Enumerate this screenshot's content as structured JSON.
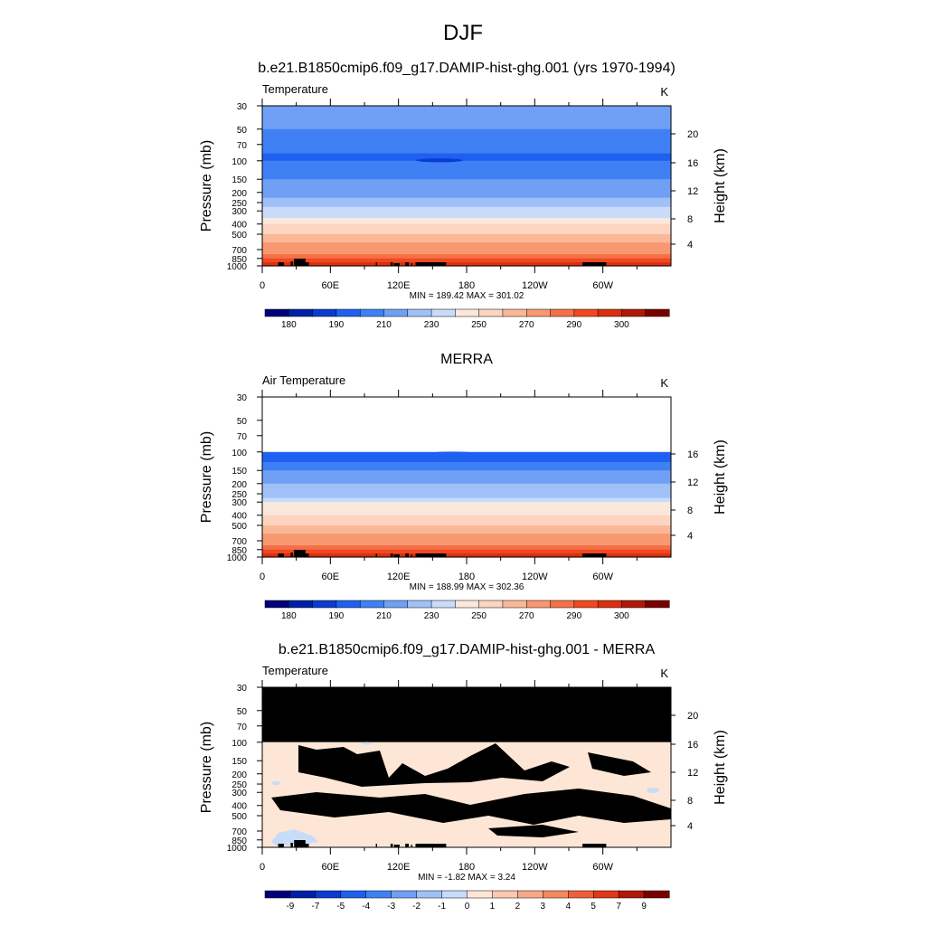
{
  "season": "DJF",
  "chart_data": [
    {
      "type": "heatmap",
      "title": "b.e21.B1850cmip6.f09_g17.DAMIP-hist-ghg.001 (yrs 1970-1994)",
      "left_label": "Temperature",
      "unit": "K",
      "ylabel": "Pressure (mb)",
      "ylabel_right": "Height (km)",
      "x_ticks": [
        "0",
        "60E",
        "120E",
        "180",
        "120W",
        "60W"
      ],
      "y_ticks": [
        "30",
        "50",
        "70",
        "100",
        "150",
        "200",
        "250",
        "300",
        "400",
        "500",
        "700",
        "850",
        "1000"
      ],
      "height_ticks": [
        "20",
        "16",
        "12",
        "8",
        "4"
      ],
      "stats": "MIN = 189.42  MAX = 301.02",
      "data_coverage": "30-1000 mb",
      "profile": [
        [
          30,
          215
        ],
        [
          50,
          209
        ],
        [
          70,
          202
        ],
        [
          100,
          198
        ],
        [
          150,
          208
        ],
        [
          200,
          217
        ],
        [
          250,
          226
        ],
        [
          300,
          235
        ],
        [
          400,
          250
        ],
        [
          500,
          260
        ],
        [
          700,
          276
        ],
        [
          850,
          284
        ],
        [
          1000,
          292
        ]
      ],
      "colorbar_labels": [
        "180",
        "190",
        "210",
        "230",
        "250",
        "270",
        "290",
        "300"
      ]
    },
    {
      "type": "heatmap",
      "title": "MERRA",
      "left_label": "Air Temperature",
      "unit": "K",
      "ylabel": "Pressure (mb)",
      "ylabel_right": "Height (km)",
      "x_ticks": [
        "0",
        "60E",
        "120E",
        "180",
        "120W",
        "60W"
      ],
      "y_ticks": [
        "30",
        "50",
        "70",
        "100",
        "150",
        "200",
        "250",
        "300",
        "400",
        "500",
        "700",
        "850",
        "1000"
      ],
      "height_ticks": [
        "16",
        "12",
        "8",
        "4"
      ],
      "stats": "MIN = 188.99  MAX = 302.36",
      "data_coverage": "100-1000 mb",
      "profile": [
        [
          100,
          196
        ],
        [
          150,
          209
        ],
        [
          200,
          218
        ],
        [
          250,
          227
        ],
        [
          300,
          236
        ],
        [
          400,
          251
        ],
        [
          500,
          261
        ],
        [
          700,
          277
        ],
        [
          850,
          285
        ],
        [
          1000,
          293
        ]
      ],
      "colorbar_labels": [
        "180",
        "190",
        "210",
        "230",
        "250",
        "270",
        "290",
        "300"
      ]
    },
    {
      "type": "heatmap",
      "title": "b.e21.B1850cmip6.f09_g17.DAMIP-hist-ghg.001 - MERRA",
      "left_label": "Temperature",
      "unit": "K",
      "ylabel": "Pressure (mb)",
      "ylabel_right": "Height (km)",
      "x_ticks": [
        "0",
        "60E",
        "120E",
        "180",
        "120W",
        "60W"
      ],
      "y_ticks": [
        "30",
        "50",
        "70",
        "100",
        "150",
        "200",
        "250",
        "300",
        "400",
        "500",
        "700",
        "850",
        "1000"
      ],
      "height_ticks": [
        "20",
        "16",
        "12",
        "8",
        "4"
      ],
      "stats": "MIN = -1.82  MAX =   3.24",
      "data_coverage": "100-1000 mb (30-100 mb missing)",
      "colorbar_labels": [
        "-9",
        "-7",
        "-5",
        "-4",
        "-3",
        "-2",
        "-1",
        "0",
        "1",
        "2",
        "3",
        "4",
        "5",
        "7",
        "9"
      ]
    }
  ],
  "colors": {
    "temperature_scale": [
      "#00007a",
      "#0020a8",
      "#0a3cd0",
      "#2060f0",
      "#4080f5",
      "#70a0f5",
      "#a0c0f8",
      "#c8dcfa",
      "#fbe8dc",
      "#fcd4c0",
      "#fbb898",
      "#f89870",
      "#f57048",
      "#f04820",
      "#d83010",
      "#b01808",
      "#7a0000"
    ],
    "difference_scale": [
      "#00007a",
      "#0020a8",
      "#0a3cd0",
      "#2060f0",
      "#4080f5",
      "#70a0f5",
      "#a0c0f8",
      "#c8dcfa",
      "#fde6d6",
      "#fbc8b0",
      "#f8a888",
      "#f58860",
      "#f06038",
      "#e03818",
      "#b01808",
      "#7a0000"
    ],
    "missing": "#000000"
  }
}
